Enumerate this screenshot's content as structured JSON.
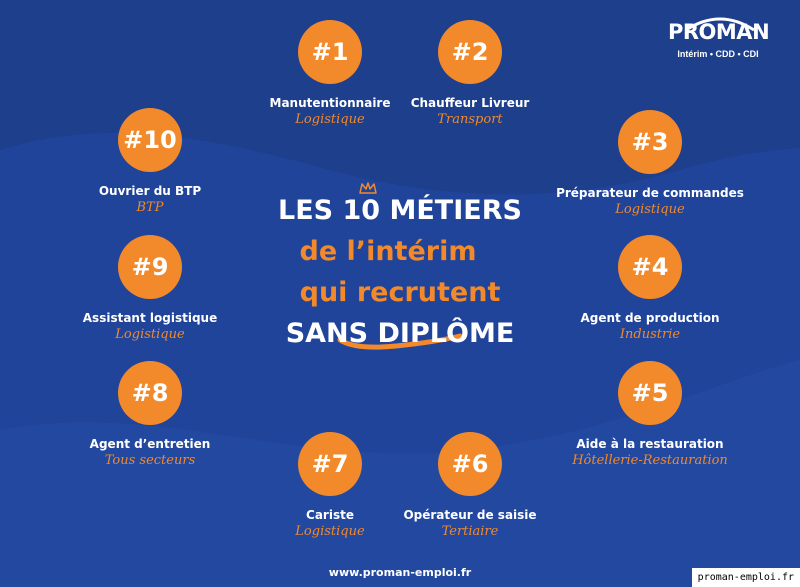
{
  "brand": {
    "name": "PROMAN",
    "tagline": "Intérim • CDD • CDI"
  },
  "headline": {
    "line1": "LES 10 MÉTIERS",
    "line2": "de l’intérim",
    "line3": "qui recrutent",
    "line4": "SANS DIPLÔME"
  },
  "jobs": [
    {
      "rank": "#1",
      "title": "Manutentionnaire",
      "sector": "Logistique"
    },
    {
      "rank": "#2",
      "title": "Chauffeur Livreur",
      "sector": "Transport"
    },
    {
      "rank": "#3",
      "title": "Préparateur de commandes",
      "sector": "Logistique"
    },
    {
      "rank": "#4",
      "title": "Agent de production",
      "sector": "Industrie"
    },
    {
      "rank": "#5",
      "title": "Aide à la restauration",
      "sector": "Hôtellerie-Restauration"
    },
    {
      "rank": "#6",
      "title": "Opérateur de saisie",
      "sector": "Tertiaire"
    },
    {
      "rank": "#7",
      "title": "Cariste",
      "sector": "Logistique"
    },
    {
      "rank": "#8",
      "title": "Agent d’entretien",
      "sector": "Tous secteurs"
    },
    {
      "rank": "#9",
      "title": "Assistant logistique",
      "sector": "Logistique"
    },
    {
      "rank": "#10",
      "title": "Ouvrier du BTP",
      "sector": "BTP"
    }
  ],
  "footer": {
    "url": "www.proman-emploi.fr"
  },
  "watermark": "proman-emploi.fr",
  "colors": {
    "background": "#1d3f8c",
    "accent": "#f2892a",
    "text": "#ffffff"
  }
}
